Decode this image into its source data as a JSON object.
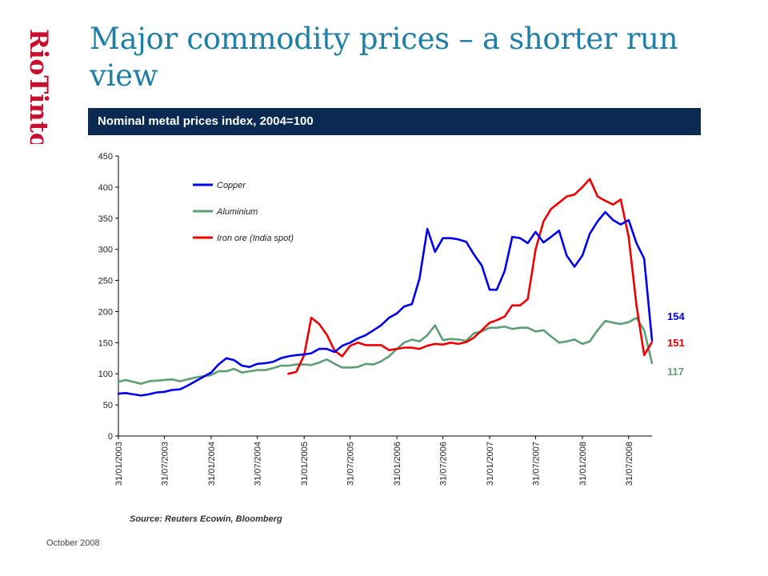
{
  "brand": {
    "logo_text": "RioTinto",
    "color": "#c8102e"
  },
  "slide": {
    "title": "Major commodity prices – a shorter run view"
  },
  "banner": {
    "text": "Nominal metal prices index, 2004=100"
  },
  "source": "Source: Reuters Ecowin, Bloomberg",
  "footer": {
    "date": "October 2008"
  },
  "chart_data": {
    "type": "line",
    "title": "Nominal metal prices index, 2004=100",
    "xlabel": "",
    "ylabel": "",
    "ylim": [
      0,
      450
    ],
    "yticks": [
      0,
      50,
      100,
      150,
      200,
      250,
      300,
      350,
      400,
      450
    ],
    "xlim": [
      "2003-01-31",
      "2008-10-31"
    ],
    "xticks": [
      "31/01/2003",
      "31/07/2003",
      "31/01/2004",
      "31/07/2004",
      "31/01/2005",
      "31/07/2005",
      "31/01/2006",
      "31/07/2006",
      "31/01/2007",
      "31/07/2007",
      "31/01/2008",
      "31/07/2008"
    ],
    "grid": false,
    "legend": "upper-left",
    "series": [
      {
        "name": "Copper",
        "color": "#0000ee",
        "end_label": "154",
        "x": [
          "2003-01-31",
          "2003-02-28",
          "2003-03-31",
          "2003-04-30",
          "2003-05-31",
          "2003-06-30",
          "2003-07-31",
          "2003-08-31",
          "2003-09-30",
          "2003-10-31",
          "2003-11-30",
          "2003-12-31",
          "2004-01-31",
          "2004-02-29",
          "2004-03-31",
          "2004-04-30",
          "2004-05-31",
          "2004-06-30",
          "2004-07-31",
          "2004-08-31",
          "2004-09-30",
          "2004-10-31",
          "2004-11-30",
          "2004-12-31",
          "2005-01-31",
          "2005-02-28",
          "2005-03-31",
          "2005-04-30",
          "2005-05-31",
          "2005-06-30",
          "2005-07-31",
          "2005-08-31",
          "2005-09-30",
          "2005-10-31",
          "2005-11-30",
          "2005-12-31",
          "2006-01-31",
          "2006-02-28",
          "2006-03-31",
          "2006-04-30",
          "2006-05-31",
          "2006-06-30",
          "2006-07-31",
          "2006-08-31",
          "2006-09-30",
          "2006-10-31",
          "2006-11-30",
          "2006-12-31",
          "2007-01-31",
          "2007-02-28",
          "2007-03-31",
          "2007-04-30",
          "2007-05-31",
          "2007-06-30",
          "2007-07-31",
          "2007-08-31",
          "2007-09-30",
          "2007-10-31",
          "2007-11-30",
          "2007-12-31",
          "2008-01-31",
          "2008-02-29",
          "2008-03-31",
          "2008-04-30",
          "2008-05-31",
          "2008-06-30",
          "2008-07-31",
          "2008-08-31",
          "2008-09-30",
          "2008-10-31"
        ],
        "values": [
          68,
          69,
          67,
          65,
          67,
          70,
          71,
          74,
          75,
          81,
          88,
          95,
          102,
          115,
          125,
          122,
          113,
          111,
          116,
          117,
          119,
          125,
          128,
          130,
          131,
          133,
          140,
          140,
          135,
          145,
          150,
          157,
          162,
          170,
          178,
          190,
          197,
          208,
          212,
          253,
          333,
          296,
          318,
          318,
          316,
          312,
          292,
          274,
          235,
          235,
          265,
          320,
          318,
          310,
          328,
          311,
          320,
          330,
          290,
          272,
          290,
          325,
          345,
          360,
          347,
          340,
          347,
          310,
          285,
          154
        ]
      },
      {
        "name": "Aluminium",
        "color": "#5e9e76",
        "end_label": "117",
        "x": [
          "2003-01-31",
          "2003-02-28",
          "2003-03-31",
          "2003-04-30",
          "2003-05-31",
          "2003-06-30",
          "2003-07-31",
          "2003-08-31",
          "2003-09-30",
          "2003-10-31",
          "2003-11-30",
          "2003-12-31",
          "2004-01-31",
          "2004-02-29",
          "2004-03-31",
          "2004-04-30",
          "2004-05-31",
          "2004-06-30",
          "2004-07-31",
          "2004-08-31",
          "2004-09-30",
          "2004-10-31",
          "2004-11-30",
          "2004-12-31",
          "2005-01-31",
          "2005-02-28",
          "2005-03-31",
          "2005-04-30",
          "2005-05-31",
          "2005-06-30",
          "2005-07-31",
          "2005-08-31",
          "2005-09-30",
          "2005-10-31",
          "2005-11-30",
          "2005-12-31",
          "2006-01-31",
          "2006-02-28",
          "2006-03-31",
          "2006-04-30",
          "2006-05-31",
          "2006-06-30",
          "2006-07-31",
          "2006-08-31",
          "2006-09-30",
          "2006-10-31",
          "2006-11-30",
          "2006-12-31",
          "2007-01-31",
          "2007-02-28",
          "2007-03-31",
          "2007-04-30",
          "2007-05-31",
          "2007-06-30",
          "2007-07-31",
          "2007-08-31",
          "2007-09-30",
          "2007-10-31",
          "2007-11-30",
          "2007-12-31",
          "2008-01-31",
          "2008-02-29",
          "2008-03-31",
          "2008-04-30",
          "2008-05-31",
          "2008-06-30",
          "2008-07-31",
          "2008-08-31",
          "2008-09-30",
          "2008-10-31"
        ],
        "values": [
          87,
          90,
          87,
          84,
          88,
          89,
          90,
          91,
          88,
          91,
          94,
          96,
          98,
          104,
          104,
          108,
          102,
          104,
          106,
          106,
          109,
          113,
          113,
          115,
          115,
          114,
          118,
          123,
          116,
          110,
          110,
          111,
          116,
          115,
          120,
          128,
          140,
          150,
          155,
          152,
          162,
          178,
          154,
          156,
          155,
          153,
          165,
          168,
          174,
          174,
          176,
          172,
          174,
          174,
          168,
          170,
          160,
          150,
          152,
          155,
          148,
          152,
          170,
          185,
          182,
          180,
          183,
          190,
          170,
          117
        ]
      },
      {
        "name": "Iron ore (India spot)",
        "color": "#ee0000",
        "end_label": "151",
        "x": [
          "2004-11-30",
          "2004-12-31",
          "2005-01-31",
          "2005-02-28",
          "2005-03-31",
          "2005-04-30",
          "2005-05-31",
          "2005-06-30",
          "2005-07-31",
          "2005-08-31",
          "2005-09-30",
          "2005-10-31",
          "2005-11-30",
          "2005-12-31",
          "2006-01-31",
          "2006-02-28",
          "2006-03-31",
          "2006-04-30",
          "2006-05-31",
          "2006-06-30",
          "2006-07-31",
          "2006-08-31",
          "2006-09-30",
          "2006-10-31",
          "2006-11-30",
          "2006-12-31",
          "2007-01-31",
          "2007-02-28",
          "2007-03-31",
          "2007-04-30",
          "2007-05-31",
          "2007-06-30",
          "2007-07-31",
          "2007-08-31",
          "2007-09-30",
          "2007-10-31",
          "2007-11-30",
          "2007-12-31",
          "2008-01-31",
          "2008-02-29",
          "2008-03-31",
          "2008-04-30",
          "2008-05-31",
          "2008-06-30",
          "2008-07-31",
          "2008-08-31",
          "2008-09-30",
          "2008-10-31"
        ],
        "values": [
          100,
          103,
          130,
          190,
          180,
          163,
          137,
          128,
          145,
          150,
          146,
          146,
          146,
          138,
          140,
          142,
          142,
          140,
          145,
          148,
          147,
          150,
          148,
          151,
          158,
          170,
          182,
          186,
          192,
          210,
          210,
          220,
          300,
          345,
          365,
          375,
          385,
          388,
          400,
          413,
          385,
          378,
          372,
          380,
          320,
          210,
          130,
          151
        ]
      }
    ]
  }
}
